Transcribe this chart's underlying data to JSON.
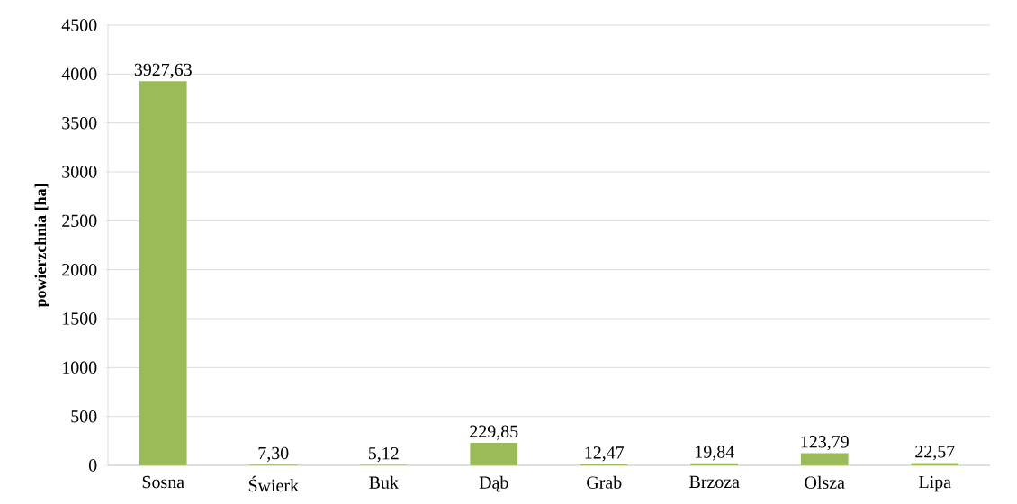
{
  "chart_data": {
    "type": "bar",
    "ylabel": "powierzchnia [ha]",
    "categories": [
      "Sosna",
      "Świerk",
      "Buk",
      "Dąb",
      "Grab",
      "Brzoza",
      "Olsza",
      "Lipa"
    ],
    "values": [
      3927.63,
      7.3,
      5.12,
      229.85,
      12.47,
      19.84,
      123.79,
      22.57
    ],
    "value_labels": [
      "3927,63",
      "7,30",
      "5,12",
      "229,85",
      "12,47",
      "19,84",
      "123,79",
      "22,57"
    ],
    "color": "#9bbb59",
    "ylim": [
      0,
      4500
    ],
    "yticks": [
      0,
      500,
      1000,
      1500,
      2000,
      2500,
      3000,
      3500,
      4000,
      4500
    ],
    "grid": "y"
  }
}
